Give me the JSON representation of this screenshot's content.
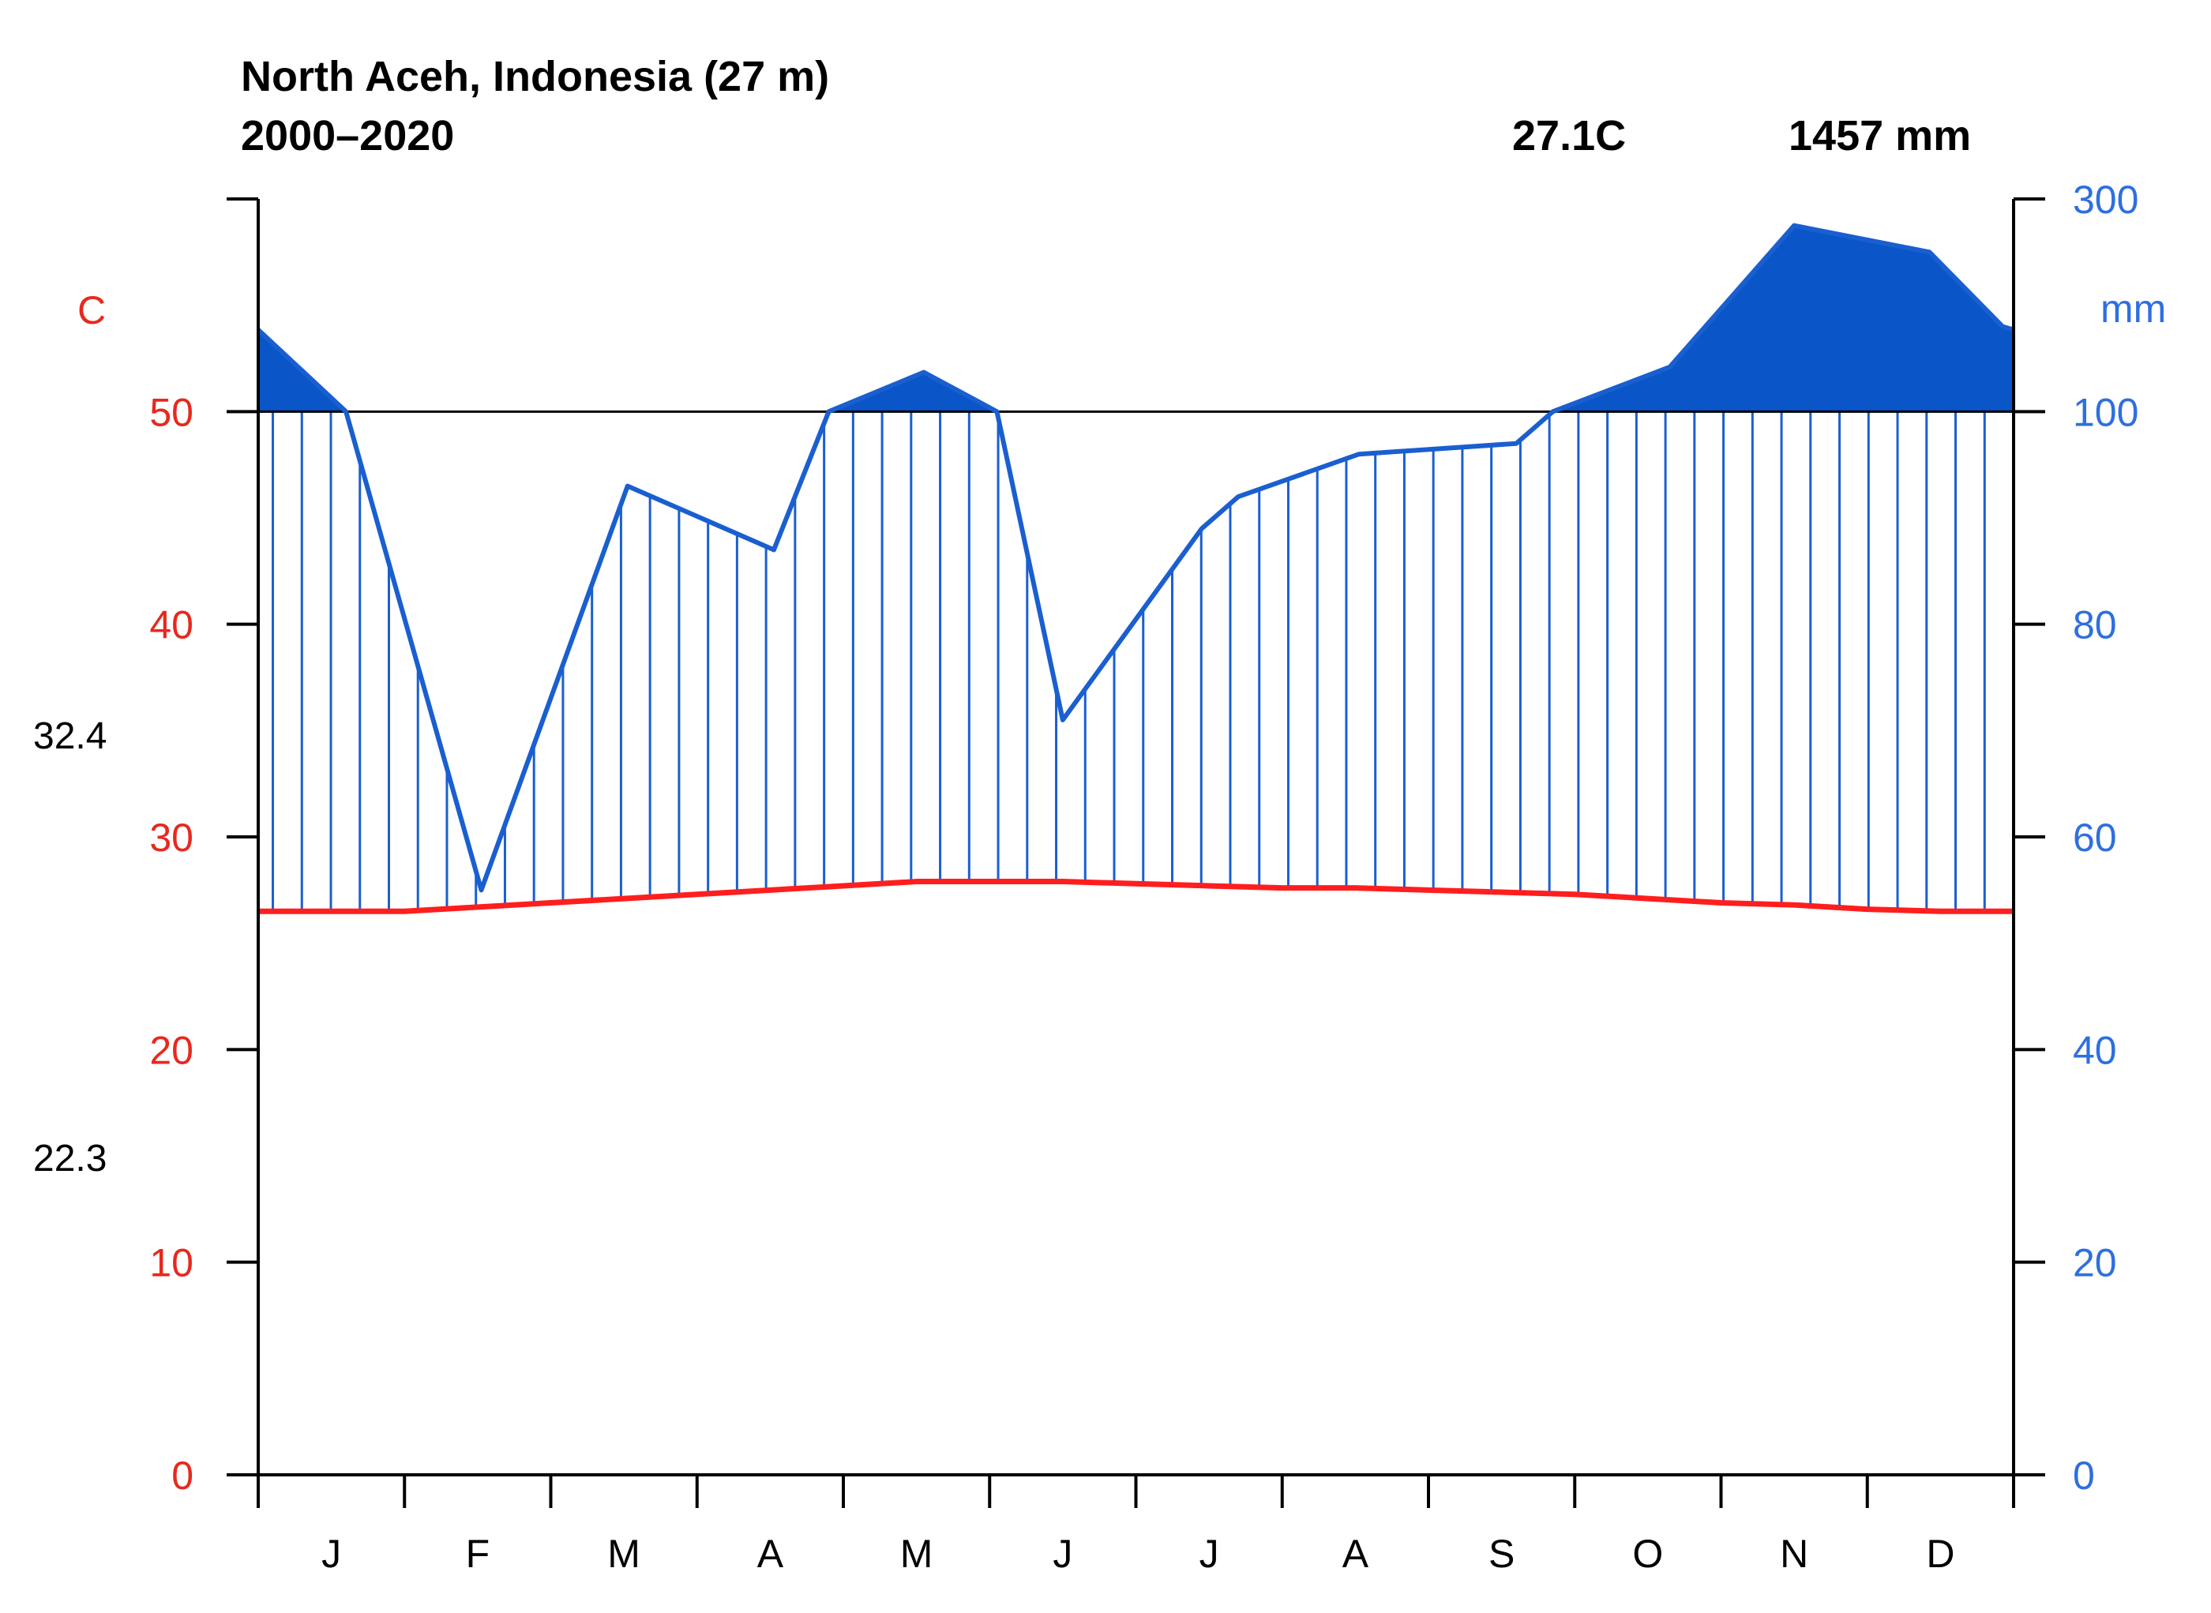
{
  "chart_data": {
    "type": "line",
    "title": "North Aceh, Indonesia (27 m)",
    "subtitle": "2000–2020",
    "mean_temp_label": "27.1C",
    "annual_precip_label": "1457 mm",
    "left_axis": {
      "unit_label": "C",
      "range": [
        0,
        60
      ],
      "ticks": [
        0,
        10,
        20,
        30,
        40,
        50
      ],
      "color": "#e8281e"
    },
    "right_axis": {
      "unit_label": "mm",
      "range": [
        0,
        300
      ],
      "ticks": [
        0,
        20,
        40,
        60,
        80,
        100,
        300
      ],
      "color": "#2e6fe0",
      "compressed_above": 100
    },
    "temp_extremes": {
      "max_label": "32.4",
      "max_value": 32.4,
      "min_label": "22.3",
      "min_value": 22.3
    },
    "months": [
      "J",
      "F",
      "M",
      "A",
      "M",
      "J",
      "J",
      "A",
      "S",
      "O",
      "N",
      "D"
    ],
    "series": [
      {
        "key": "temperature",
        "axis": "left",
        "color": "#ff1e1e",
        "x": [
          0,
          1,
          2,
          3,
          4,
          5,
          6,
          7,
          8,
          9,
          10,
          11,
          12,
          13,
          14,
          15,
          16,
          17,
          18,
          19,
          20,
          21,
          22,
          23,
          24
        ],
        "values": [
          26.5,
          26.5,
          26.5,
          26.7,
          26.9,
          27.1,
          27.3,
          27.5,
          27.7,
          27.9,
          27.9,
          27.9,
          27.8,
          27.7,
          27.6,
          27.6,
          27.5,
          27.4,
          27.3,
          27.1,
          26.9,
          26.8,
          26.6,
          26.5,
          26.5
        ]
      },
      {
        "key": "precipitation",
        "axis": "right",
        "color": "#1a5fd0",
        "x": [
          0,
          1.2,
          3.05,
          5.05,
          7.05,
          7.8,
          9.1,
          10.1,
          11.0,
          12.9,
          13.4,
          15.05,
          17.2,
          17.7,
          19.3,
          21.0,
          22.85,
          23.85,
          24
        ],
        "values": [
          177,
          100,
          55,
          93,
          87,
          100,
          137,
          100,
          71,
          89,
          92,
          96,
          97,
          100,
          142,
          275,
          250,
          180,
          177
        ]
      }
    ]
  }
}
